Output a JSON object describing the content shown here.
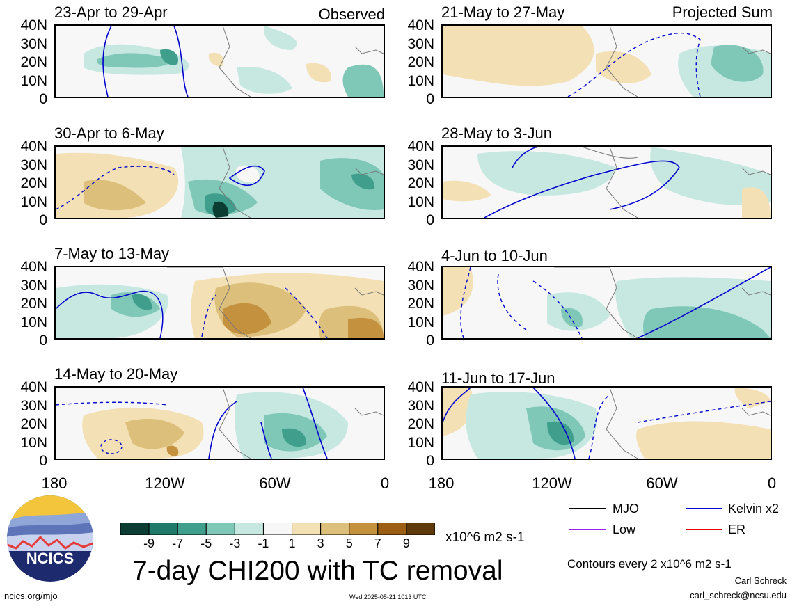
{
  "panels": [
    {
      "title": "23-Apr to 29-Apr",
      "tag": "Observed"
    },
    {
      "title": "30-Apr to 6-May",
      "tag": ""
    },
    {
      "title": "7-May to 13-May",
      "tag": ""
    },
    {
      "title": "14-May to 20-May",
      "tag": ""
    },
    {
      "title": "21-May to 27-May",
      "tag": "Projected Sum"
    },
    {
      "title": "28-May to 3-Jun",
      "tag": ""
    },
    {
      "title": "4-Jun to 10-Jun",
      "tag": ""
    },
    {
      "title": "11-Jun to 17-Jun",
      "tag": ""
    }
  ],
  "lat_ticks": [
    "40N",
    "30N",
    "20N",
    "10N",
    "0"
  ],
  "lon_ticks": [
    "180",
    "120W",
    "60W",
    "0"
  ],
  "colorbar": {
    "labels": [
      "-9",
      "-7",
      "-5",
      "-3",
      "-1",
      "1",
      "3",
      "5",
      "7",
      "9"
    ],
    "colors": [
      "#0b3d33",
      "#1f7a6a",
      "#3f9e8c",
      "#7fc7b7",
      "#c6e8e0",
      "#f7f7f7",
      "#f3e0b4",
      "#dcbf7a",
      "#c4913f",
      "#9c5e12",
      "#5e3a0a"
    ],
    "units": "x10^6 m2 s-1"
  },
  "title": "7-day CHI200 with TC removal",
  "legend": {
    "mjo": {
      "label": "MJO",
      "color": "#000000"
    },
    "kelvin": {
      "label": "Kelvin x2",
      "color": "#0000d0"
    },
    "low": {
      "label": "Low",
      "color": "#a020f0"
    },
    "er": {
      "label": "ER",
      "color": "#e00000"
    }
  },
  "contours_note": "Contours every 2 x10^6 m2 s-1",
  "author": "Carl Schreck",
  "email": "carl_schreck@ncsu.edu",
  "site": "ncics.org/mjo",
  "timestamp": "Wed 2025-05-21 1013 UTC",
  "logo_text": "NCICS"
}
